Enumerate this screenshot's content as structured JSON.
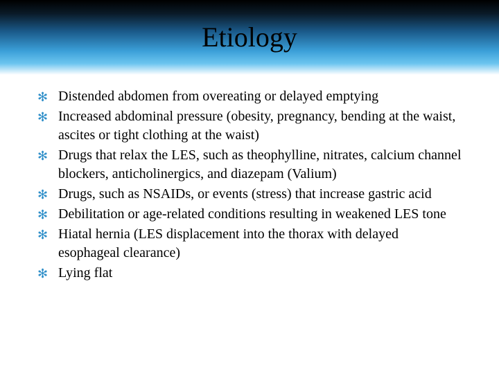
{
  "slide": {
    "title": "Etiology",
    "title_fontsize": 40,
    "title_color": "#000000",
    "body_fontsize": 20,
    "body_color": "#000000",
    "bullet_color": "#2f8fc9",
    "bullet_glyph": "✻",
    "header_gradient": [
      "#000000",
      "#0a1a28",
      "#1a5a8a",
      "#3b9fd8",
      "#6cc5ef",
      "#ffffff"
    ],
    "background_color": "#ffffff",
    "items": [
      "Distended abdomen from overeating or delayed emptying",
      "Increased abdominal pressure (obesity, pregnancy, bending at the waist, ascites or tight clothing at the waist)",
      "Drugs that relax the LES, such as theophylline, nitrates, calcium channel blockers, anticholinergics, and diazepam (Valium)",
      "Drugs, such as NSAIDs, or events (stress) that increase gastric acid",
      "Debilitation or age-related conditions resulting in weakened LES tone",
      "Hiatal hernia (LES displacement into the thorax with delayed esophageal clearance)",
      "Lying flat"
    ]
  }
}
